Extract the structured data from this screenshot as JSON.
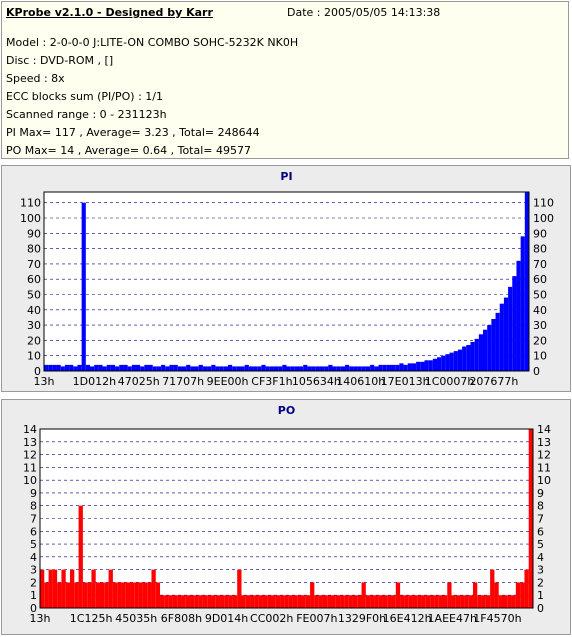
{
  "header": {
    "title": "KProbe v2.1.0 - Designed by Karr",
    "date": "Date : 2005/05/05 14:13:38",
    "model": "Model : 2-0-0-0 J:LITE-ON COMBO SOHC-5232K NK0H",
    "disc": "Disc : DVD-ROM ,  []",
    "speed": "Speed : 8x",
    "ecc": "ECC blocks sum (PI/PO) : 1/1",
    "range": "Scanned range : 0 - 231123h",
    "pi_stats": "PI Max= 117 , Average= 3.23 , Total= 248644",
    "po_stats": "PO Max= 14 , Average= 0.64 , Total= 49577"
  },
  "colors": {
    "pi_series": "#0000ff",
    "po_series": "#ff0000",
    "chart_title": "#000080",
    "plot_bg": "#ffffff",
    "panel_bg": "#ececec",
    "info_bg": "#fffff0"
  },
  "chart_data": [
    {
      "type": "area",
      "title": "PI",
      "ylim": [
        0,
        117
      ],
      "yticks": [
        0,
        10,
        20,
        30,
        40,
        50,
        60,
        70,
        80,
        90,
        100,
        110
      ],
      "x_ticks": [
        "13h",
        "1D012h",
        "47025h",
        "71707h",
        "9EE00h",
        "CF3F1h",
        "105634h",
        "140610h",
        "17E013h",
        "1C0007h",
        "207677h"
      ],
      "grid": true,
      "series": [
        {
          "values": [
            4,
            4,
            4,
            4,
            3,
            4,
            4,
            3,
            4,
            110,
            4,
            3,
            4,
            4,
            3,
            4,
            4,
            3,
            4,
            4,
            3,
            4,
            4,
            3,
            4,
            4,
            3,
            3,
            4,
            3,
            4,
            4,
            3,
            3,
            4,
            3,
            3,
            4,
            3,
            3,
            4,
            3,
            3,
            3,
            4,
            3,
            3,
            3,
            4,
            3,
            3,
            3,
            4,
            3,
            3,
            3,
            3,
            4,
            3,
            3,
            3,
            3,
            4,
            3,
            3,
            3,
            3,
            3,
            4,
            3,
            3,
            3,
            4,
            3,
            3,
            3,
            3,
            3,
            4,
            3,
            4,
            4,
            4,
            4,
            4,
            5,
            4,
            5,
            5,
            6,
            6,
            7,
            7,
            8,
            9,
            10,
            11,
            12,
            13,
            14,
            16,
            17,
            19,
            21,
            24,
            27,
            30,
            34,
            38,
            44,
            48,
            55,
            62,
            72,
            88,
            117
          ]
        }
      ]
    },
    {
      "type": "area",
      "title": "PO",
      "ylim": [
        0,
        14
      ],
      "yticks": [
        0,
        1,
        2,
        3,
        4,
        5,
        6,
        7,
        8,
        9,
        10,
        11,
        12,
        13,
        14
      ],
      "x_ticks": [
        "13h",
        "1C125h",
        "45035h",
        "6F808h",
        "9D014h",
        "CC002h",
        "FE007h",
        "1329F0h",
        "16E412h",
        "1AEE47h",
        "1F4570h"
      ],
      "grid": true,
      "series": [
        {
          "values": [
            3,
            2,
            3,
            3,
            2,
            3,
            2,
            3,
            2,
            8,
            2,
            2,
            3,
            2,
            2,
            2,
            3,
            2,
            2,
            2,
            2,
            2,
            2,
            2,
            2,
            2,
            3,
            2,
            1,
            1,
            1,
            1,
            1,
            1,
            1,
            1,
            1,
            1,
            1,
            1,
            1,
            1,
            1,
            1,
            1,
            1,
            3,
            1,
            1,
            1,
            1,
            1,
            1,
            1,
            1,
            1,
            1,
            1,
            1,
            1,
            1,
            1,
            1,
            2,
            1,
            1,
            1,
            1,
            1,
            1,
            1,
            1,
            1,
            1,
            1,
            2,
            1,
            1,
            1,
            1,
            1,
            1,
            1,
            2,
            1,
            1,
            1,
            1,
            1,
            1,
            1,
            1,
            1,
            1,
            1,
            2,
            1,
            1,
            1,
            1,
            1,
            2,
            1,
            1,
            1,
            3,
            2,
            1,
            1,
            1,
            1,
            2,
            2,
            3,
            14
          ]
        }
      ]
    }
  ]
}
